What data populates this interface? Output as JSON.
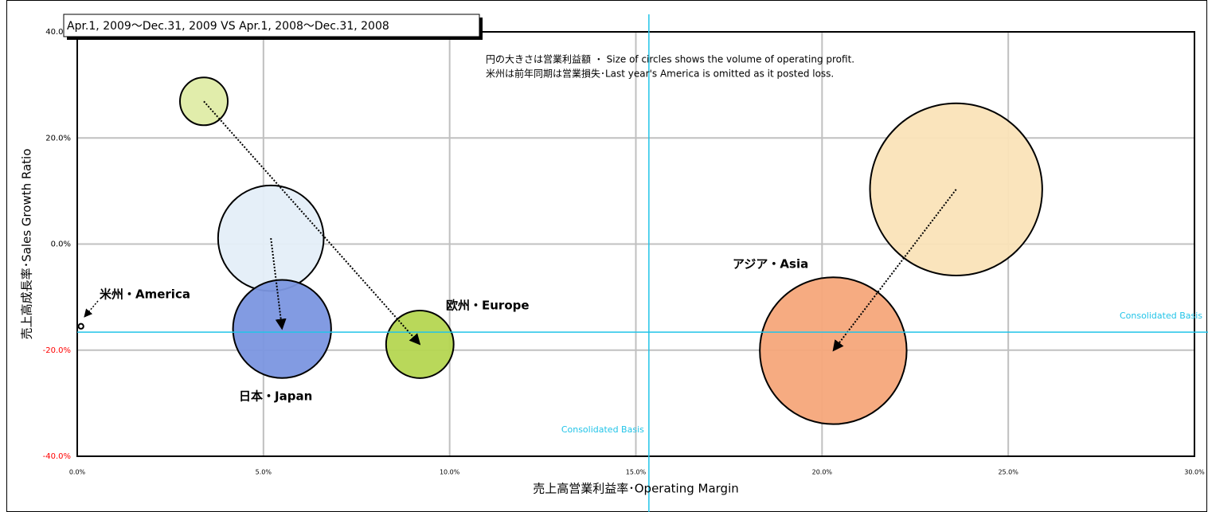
{
  "chart_data": {
    "type": "bubble",
    "title": "Apr.1, 2009～Dec.31, 2009 VS Apr.1, 2008～Dec.31, 2008",
    "notes": [
      "円の大きさは営業利益額 ・ Size of circles shows the volume of operating profit.",
      "米州は前年同期は営業損失･Last year's America is omitted as it posted loss."
    ],
    "xlabel": "売上高営業利益率･Operating Margin",
    "ylabel": "売上高成長率･Sales Growth Ratio",
    "categories": [
      "日本・Japan",
      "欧州・Europe",
      "アジア・Asia",
      "米州・America"
    ],
    "series": [
      {
        "colors": [
          "#7b96e0",
          "#b5d651",
          "#f5a77a",
          "#ffffff"
        ],
        "x": [
          5.5,
          9.2,
          20.3,
          0.1
        ],
        "values": [
          -16.0,
          -18.9,
          -20.1,
          -15.5
        ],
        "sizes": [
          38,
          18,
          85,
          0.1
        ]
      },
      {
        "colors": [
          "#e4eef8",
          "#dfeca6",
          "#fae3b8",
          null
        ],
        "x": [
          5.2,
          3.4,
          23.6,
          null
        ],
        "values": [
          1.1,
          26.9,
          10.3,
          null
        ],
        "sizes": [
          44,
          9,
          117,
          null
        ]
      }
    ],
    "xlim": [
      0,
      30
    ],
    "xticks": [
      {
        "value": 0,
        "label": "0.0%"
      },
      {
        "value": 5,
        "label": "5.0%"
      },
      {
        "value": 10,
        "label": "10.0%"
      },
      {
        "value": 15,
        "label": "15.0%"
      },
      {
        "value": 20,
        "label": "20.0%"
      },
      {
        "value": 25,
        "label": "25.0%"
      },
      {
        "value": 30,
        "label": "30.0%"
      }
    ],
    "ylim": [
      -40,
      40
    ],
    "yticks": [
      {
        "value": -40,
        "label": "-40.0%"
      },
      {
        "value": -20,
        "label": "-20.0%"
      },
      {
        "value": 0,
        "label": "0.0%"
      },
      {
        "value": 20,
        "label": "20.0%"
      },
      {
        "value": 40,
        "label": "40.0%"
      }
    ],
    "negative_tick_color": "#ff0000",
    "grid": true,
    "reference": {
      "x": 15.35,
      "y": -16.6,
      "color": "#22c4e8",
      "labels": [
        "Consolidated  Basis",
        "Consolidated  Basis"
      ]
    }
  }
}
